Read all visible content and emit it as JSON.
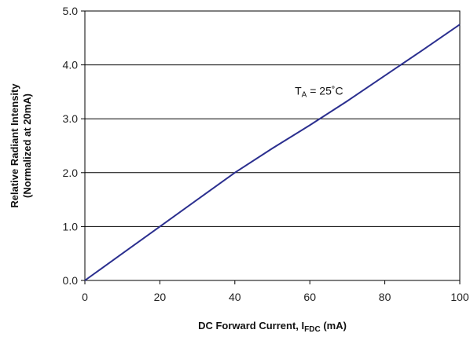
{
  "chart_data": {
    "type": "line",
    "xlabel": {
      "main": "DC Forward Current, I",
      "sub": "FDC",
      "suffix": " (mA)"
    },
    "ylabel": {
      "line1": "Relative Radiant Intensity",
      "line2": "(Normalized at 20mA)"
    },
    "annotation": {
      "main": "T",
      "sub": "A",
      "suffix": " = 25˚C",
      "x": 56,
      "y": 3.45
    },
    "xlim": [
      0,
      100
    ],
    "ylim": [
      0,
      5
    ],
    "x_ticks": [
      0,
      20,
      40,
      60,
      80,
      100
    ],
    "x_tick_labels": [
      "0",
      "20",
      "40",
      "60",
      "80",
      "100"
    ],
    "y_ticks": [
      0,
      1,
      2,
      3,
      4,
      5
    ],
    "y_tick_labels": [
      "0.0",
      "1.0",
      "2.0",
      "3.0",
      "4.0",
      "5.0"
    ],
    "grid": {
      "horizontal": true,
      "vertical": false
    },
    "series": [
      {
        "color": "#2b2f8f",
        "x": [
          0,
          10,
          20,
          30,
          40,
          50,
          60,
          70,
          80,
          90,
          100
        ],
        "y": [
          0,
          0.5,
          1.0,
          1.5,
          2.0,
          2.45,
          2.88,
          3.33,
          3.8,
          4.27,
          4.75
        ]
      }
    ]
  }
}
